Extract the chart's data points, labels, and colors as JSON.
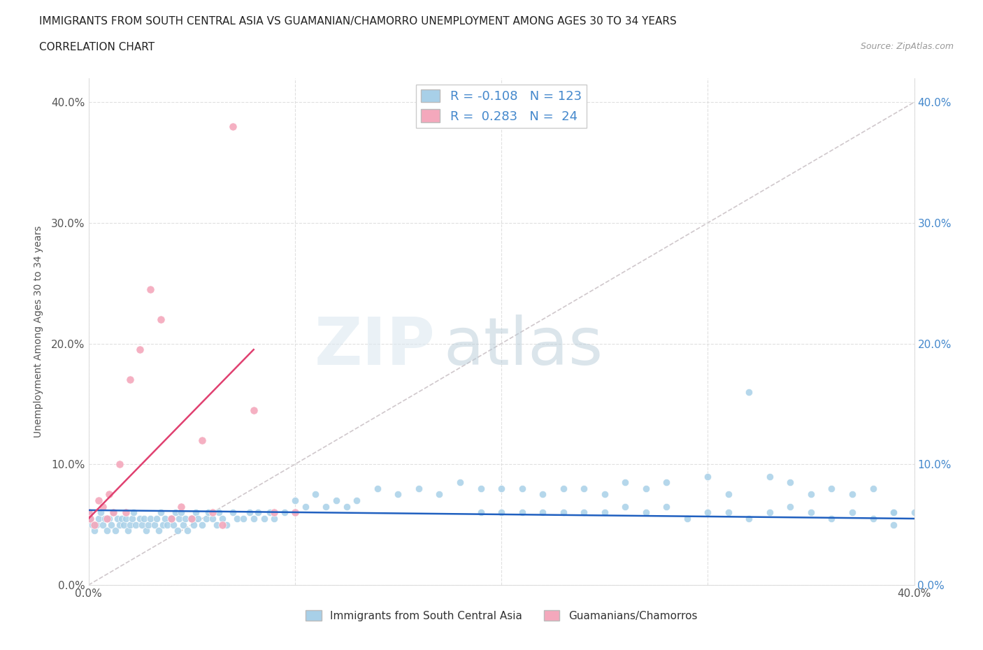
{
  "title_line1": "IMMIGRANTS FROM SOUTH CENTRAL ASIA VS GUAMANIAN/CHAMORRO UNEMPLOYMENT AMONG AGES 30 TO 34 YEARS",
  "title_line2": "CORRELATION CHART",
  "source_text": "Source: ZipAtlas.com",
  "ylabel": "Unemployment Among Ages 30 to 34 years",
  "legend_label1": "Immigrants from South Central Asia",
  "legend_label2": "Guamanians/Chamorros",
  "r1": "-0.108",
  "n1": "123",
  "r2": "0.283",
  "n2": "24",
  "color1": "#a8d0e8",
  "color2": "#f4a8bc",
  "line_color1": "#2060c0",
  "line_color2": "#e04070",
  "diag_color": "#cccccc",
  "xlim": [
    0.0,
    0.4
  ],
  "ylim": [
    0.0,
    0.42
  ],
  "xticks": [
    0.0,
    0.1,
    0.2,
    0.3,
    0.4
  ],
  "yticks": [
    0.0,
    0.1,
    0.2,
    0.3,
    0.4
  ],
  "xtick_labels_bottom": [
    "0.0%",
    "",
    "",
    "",
    "40.0%"
  ],
  "ytick_labels_left": [
    "0.0%",
    "10.0%",
    "20.0%",
    "30.0%",
    "40.0%"
  ],
  "ytick_labels_right": [
    "0.0%",
    "10.0%",
    "20.0%",
    "30.0%",
    "40.0%"
  ],
  "blue_scatter_x": [
    0.0,
    0.001,
    0.002,
    0.003,
    0.004,
    0.005,
    0.006,
    0.007,
    0.008,
    0.009,
    0.01,
    0.011,
    0.012,
    0.013,
    0.014,
    0.015,
    0.016,
    0.017,
    0.018,
    0.019,
    0.02,
    0.021,
    0.022,
    0.023,
    0.025,
    0.026,
    0.027,
    0.028,
    0.029,
    0.03,
    0.032,
    0.033,
    0.034,
    0.035,
    0.036,
    0.037,
    0.038,
    0.04,
    0.041,
    0.042,
    0.043,
    0.044,
    0.045,
    0.046,
    0.047,
    0.048,
    0.05,
    0.051,
    0.052,
    0.053,
    0.055,
    0.057,
    0.058,
    0.06,
    0.062,
    0.063,
    0.065,
    0.067,
    0.07,
    0.072,
    0.075,
    0.078,
    0.08,
    0.082,
    0.085,
    0.088,
    0.09,
    0.095,
    0.1,
    0.105,
    0.11,
    0.115,
    0.12,
    0.125,
    0.13,
    0.14,
    0.15,
    0.16,
    0.17,
    0.18,
    0.19,
    0.2,
    0.21,
    0.22,
    0.23,
    0.24,
    0.25,
    0.26,
    0.27,
    0.28,
    0.3,
    0.31,
    0.32,
    0.33,
    0.34,
    0.35,
    0.36,
    0.37,
    0.38,
    0.39,
    0.4,
    0.38,
    0.39,
    0.39,
    0.37,
    0.35,
    0.36,
    0.34,
    0.33,
    0.32,
    0.31,
    0.3,
    0.29,
    0.28,
    0.27,
    0.26,
    0.25,
    0.24,
    0.23,
    0.22,
    0.21,
    0.2,
    0.19
  ],
  "blue_scatter_y": [
    0.06,
    0.055,
    0.05,
    0.045,
    0.05,
    0.055,
    0.06,
    0.05,
    0.055,
    0.045,
    0.055,
    0.05,
    0.06,
    0.045,
    0.055,
    0.05,
    0.055,
    0.05,
    0.055,
    0.045,
    0.05,
    0.055,
    0.06,
    0.05,
    0.055,
    0.05,
    0.055,
    0.045,
    0.05,
    0.055,
    0.05,
    0.055,
    0.045,
    0.06,
    0.05,
    0.055,
    0.05,
    0.055,
    0.05,
    0.06,
    0.045,
    0.055,
    0.06,
    0.05,
    0.055,
    0.045,
    0.055,
    0.05,
    0.06,
    0.055,
    0.05,
    0.055,
    0.06,
    0.055,
    0.05,
    0.06,
    0.055,
    0.05,
    0.06,
    0.055,
    0.055,
    0.06,
    0.055,
    0.06,
    0.055,
    0.06,
    0.055,
    0.06,
    0.07,
    0.065,
    0.075,
    0.065,
    0.07,
    0.065,
    0.07,
    0.08,
    0.075,
    0.08,
    0.075,
    0.085,
    0.08,
    0.08,
    0.08,
    0.075,
    0.08,
    0.08,
    0.075,
    0.085,
    0.08,
    0.085,
    0.09,
    0.075,
    0.16,
    0.09,
    0.085,
    0.075,
    0.08,
    0.075,
    0.08,
    0.06,
    0.06,
    0.055,
    0.06,
    0.05,
    0.06,
    0.06,
    0.055,
    0.065,
    0.06,
    0.055,
    0.06,
    0.06,
    0.055,
    0.065,
    0.06,
    0.065,
    0.06,
    0.06,
    0.06,
    0.06,
    0.06,
    0.06,
    0.06
  ],
  "pink_scatter_x": [
    0.0,
    0.001,
    0.003,
    0.005,
    0.007,
    0.009,
    0.01,
    0.012,
    0.015,
    0.018,
    0.02,
    0.025,
    0.03,
    0.035,
    0.04,
    0.045,
    0.05,
    0.055,
    0.06,
    0.065,
    0.07,
    0.08,
    0.09,
    0.1
  ],
  "pink_scatter_y": [
    0.06,
    0.055,
    0.05,
    0.07,
    0.065,
    0.055,
    0.075,
    0.06,
    0.1,
    0.06,
    0.17,
    0.195,
    0.245,
    0.22,
    0.055,
    0.065,
    0.055,
    0.12,
    0.06,
    0.05,
    0.38,
    0.145,
    0.06,
    0.06
  ],
  "pink_line_x0": 0.0,
  "pink_line_y0": 0.055,
  "pink_line_x1": 0.08,
  "pink_line_y1": 0.195,
  "blue_line_x0": 0.0,
  "blue_line_y0": 0.062,
  "blue_line_x1": 0.4,
  "blue_line_y1": 0.055
}
